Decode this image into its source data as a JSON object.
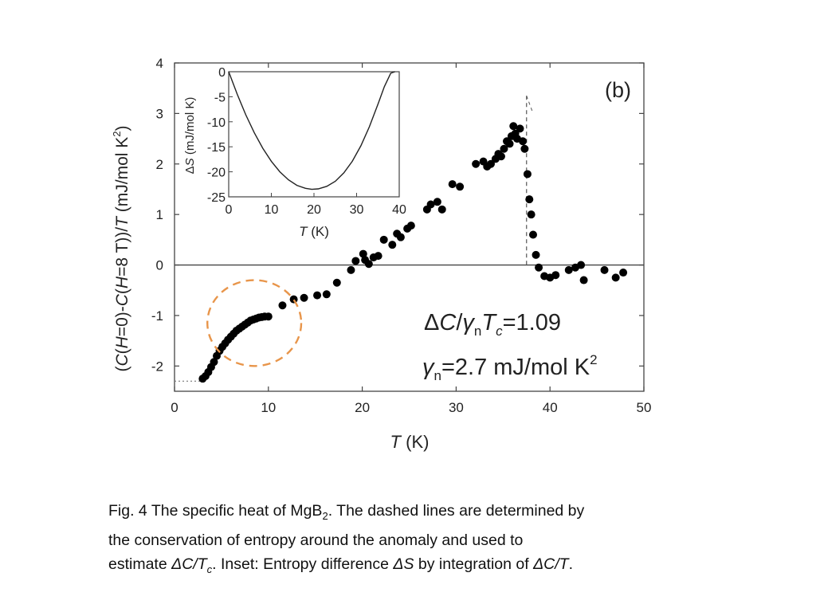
{
  "chart_data": [
    {
      "type": "scatter",
      "panel_label": "(b)",
      "xlabel": "T (K)",
      "ylabel": "(C(H=0)-C(H=8 T))/T (mJ/mol K2)",
      "xlim": [
        0,
        50
      ],
      "ylim": [
        -2.5,
        4
      ],
      "x_ticks": [
        0,
        10,
        20,
        30,
        40,
        50
      ],
      "y_ticks": [
        -2,
        -1,
        0,
        1,
        2,
        3,
        4
      ],
      "x_tick_labels": [
        "0",
        "10",
        "20",
        "30",
        "40",
        "50"
      ],
      "y_tick_labels": [
        "-2",
        "-1",
        "0",
        "1",
        "2",
        "3",
        "4"
      ],
      "series": [
        {
          "marker": "filled-circle",
          "x": [
            3.0,
            3.3,
            3.6,
            3.9,
            4.2,
            4.5,
            4.8,
            5.1,
            5.4,
            5.7,
            6.0,
            6.3,
            6.6,
            6.9,
            7.2,
            7.5,
            7.8,
            8.1,
            8.4,
            8.7,
            9.0,
            9.3,
            9.6,
            10.0,
            11.5,
            12.7,
            13.8,
            15.2,
            16.2,
            17.3,
            18.8,
            19.3,
            20.1,
            20.3,
            20.7,
            21.2,
            21.7,
            22.3,
            23.2,
            23.7,
            24.1,
            24.8,
            25.2,
            26.9,
            27.3,
            28.0,
            28.5,
            29.6,
            30.4,
            32.1,
            32.9,
            33.3,
            33.7,
            34.2,
            34.5,
            34.8,
            35.1,
            35.4,
            35.7,
            35.9,
            36.1,
            36.3,
            36.5,
            36.8,
            37.1,
            37.3,
            37.6,
            37.8,
            38.0,
            38.2,
            38.5,
            38.8,
            39.4,
            40.0,
            40.6,
            42.0,
            42.7,
            43.3,
            43.6,
            45.8,
            47.0,
            47.8
          ],
          "y": [
            -2.25,
            -2.2,
            -2.12,
            -2.02,
            -1.92,
            -1.8,
            -1.7,
            -1.62,
            -1.55,
            -1.48,
            -1.42,
            -1.36,
            -1.3,
            -1.26,
            -1.22,
            -1.18,
            -1.14,
            -1.1,
            -1.08,
            -1.06,
            -1.04,
            -1.03,
            -1.02,
            -1.02,
            -0.8,
            -0.68,
            -0.65,
            -0.6,
            -0.58,
            -0.35,
            -0.1,
            0.08,
            0.22,
            0.1,
            0.02,
            0.15,
            0.18,
            0.5,
            0.4,
            0.62,
            0.55,
            0.72,
            0.78,
            1.1,
            1.2,
            1.25,
            1.1,
            1.6,
            1.55,
            2.0,
            2.05,
            1.95,
            2.0,
            2.1,
            2.2,
            2.15,
            2.3,
            2.45,
            2.4,
            2.55,
            2.75,
            2.6,
            2.5,
            2.7,
            2.45,
            2.3,
            1.8,
            1.3,
            1.0,
            0.6,
            0.2,
            -0.05,
            -0.22,
            -0.25,
            -0.2,
            -0.1,
            -0.05,
            0.0,
            -0.3,
            -0.1,
            -0.25,
            -0.15
          ]
        }
      ],
      "annotations": {
        "ratio_label": "ΔC/γnTc=1.09",
        "gamma_label": "γn=2.7 mJ/mol K2"
      },
      "reference_lines": {
        "zero_line_y": 0,
        "dashed_vertical_x": 37.5,
        "dotted_horizontal_y": -2.3
      },
      "highlight_circle": {
        "center": [
          8.5,
          -1.15
        ],
        "rx_data": 5.0,
        "ry_data": 0.85,
        "color": "#e8954a"
      },
      "colors": {
        "markers": "#000000",
        "axes": "#333333",
        "highlight": "#e8954a"
      },
      "grid": false,
      "legend": "none"
    },
    {
      "type": "line",
      "role": "inset",
      "xlabel": "T (K)",
      "ylabel": "ΔS (mJ/mol K)",
      "xlim": [
        0,
        40
      ],
      "ylim": [
        -25,
        0
      ],
      "x_ticks": [
        0,
        10,
        20,
        30,
        40
      ],
      "y_ticks": [
        0,
        -5,
        -10,
        -15,
        -20,
        -25
      ],
      "x_tick_labels": [
        "0",
        "10",
        "20",
        "30",
        "40"
      ],
      "y_tick_labels": [
        "0",
        "-5",
        "-10",
        "-15",
        "-20",
        "-25"
      ],
      "series": [
        {
          "x": [
            0,
            2,
            4,
            6,
            8,
            10,
            12,
            14,
            16,
            18,
            19.5,
            21,
            23,
            25,
            27,
            29,
            31,
            33,
            35,
            36.5,
            38,
            39
          ],
          "y": [
            0,
            -4.5,
            -8.6,
            -12.2,
            -15.3,
            -17.9,
            -20.0,
            -21.6,
            -22.7,
            -23.3,
            -23.5,
            -23.4,
            -22.9,
            -21.9,
            -20.2,
            -17.9,
            -14.8,
            -11.0,
            -6.5,
            -3.0,
            -0.3,
            0
          ]
        }
      ],
      "grid": false,
      "legend": "none"
    }
  ],
  "caption": {
    "line1_prefix": "Fig. 4 The specific heat of MgB",
    "line1_sub": "2",
    "line1_suffix": ". The dashed lines are determined by",
    "line2": "the conservation of entropy around the anomaly and used to",
    "line3_a": "estimate ",
    "line3_b_italic": "ΔC/T",
    "line3_c_sub": "c",
    "line3_d": ". Inset: Entropy difference ",
    "line3_e_italic": "ΔS",
    "line3_f": " by integration of ",
    "line3_g_italic": "ΔC/T",
    "line3_h": "."
  }
}
